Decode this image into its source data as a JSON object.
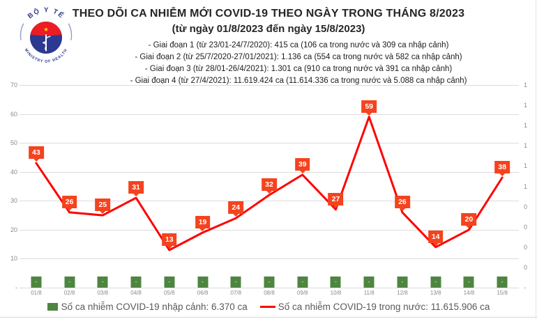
{
  "logo": {
    "top": "BỘ Y TẾ",
    "bottom": "MINISTRY OF HEALTH"
  },
  "header": {
    "title": "THEO DÕI CA NHIỄM MỚI COVID-19 THEO NGÀY TRONG THÁNG 8/2023",
    "subtitle": "(từ ngày 01/8/2023 đến ngày 15/8/2023)",
    "stages": [
      "- Giai đoạn 1 (từ 23/01-24/7/2020): 415 ca (106 ca trong nước và 309 ca nhập cảnh)",
      "- Giai đoạn 2 (từ 25/7/2020-27/01/2021): 1.136 ca (554 ca trong nước và 582 ca nhập cảnh)",
      "- Giai đoạn 3 (từ 28/01-26/4/2021): 1.301 ca (910 ca trong nước và 391 ca nhập cảnh)",
      "- Giai đoạn 4 (từ 27/4/2021): 11.619.424 ca (11.614.336 ca trong nước và 5.088 ca nhập cảnh)"
    ]
  },
  "chart_data": {
    "type": "line",
    "title": "THEO DÕI CA NHIỄM MỚI COVID-19 THEO NGÀY TRONG THÁNG 8/2023",
    "categories": [
      "01/8",
      "02/8",
      "03/8",
      "04/8",
      "05/8",
      "06/8",
      "07/8",
      "08/8",
      "09/8",
      "10/8",
      "11/8",
      "12/8",
      "13/8",
      "14/8",
      "15/8"
    ],
    "series": [
      {
        "name": "Số ca nhiễm COVID-19 trong nước",
        "type": "line",
        "color": "#fe0000",
        "label_box_color": "#f4431e",
        "axis": "left",
        "values": [
          43,
          26,
          25,
          31,
          13,
          19,
          24,
          32,
          39,
          27,
          59,
          26,
          14,
          20,
          38
        ]
      },
      {
        "name": "Số ca nhiễm COVID-19 nhập cảnh",
        "type": "bar",
        "color": "#4e8540",
        "axis": "right",
        "values": [
          0,
          0,
          0,
          0,
          0,
          0,
          0,
          0,
          0,
          0,
          0,
          0,
          0,
          0,
          0
        ],
        "data_labels": [
          "-",
          "-",
          "-",
          "-",
          "-",
          "-",
          "-",
          "-",
          "-",
          "-",
          "-",
          "-",
          "-",
          "-",
          "-"
        ]
      }
    ],
    "left_axis": {
      "min": 0,
      "max": 70,
      "step": 10,
      "tick_labels_bottom_to_top": [
        "-",
        "10",
        "20",
        "30",
        "40",
        "50",
        "60",
        "70"
      ]
    },
    "right_axis": {
      "tick_labels_top_to_bottom": [
        "1",
        "1",
        "1",
        "1",
        "1",
        "1",
        "0",
        "0",
        "0",
        "0",
        "-"
      ]
    },
    "grid": "horizontal",
    "legend_position": "bottom"
  },
  "legend": [
    {
      "marker": "square",
      "color": "#4e8540",
      "label": "Số ca nhiễm COVID-19 nhập cảnh: 6.370 ca"
    },
    {
      "marker": "line",
      "color": "#fe0000",
      "label": "Số ca nhiễm COVID-19 trong nước: 11.615.906 ca"
    }
  ]
}
